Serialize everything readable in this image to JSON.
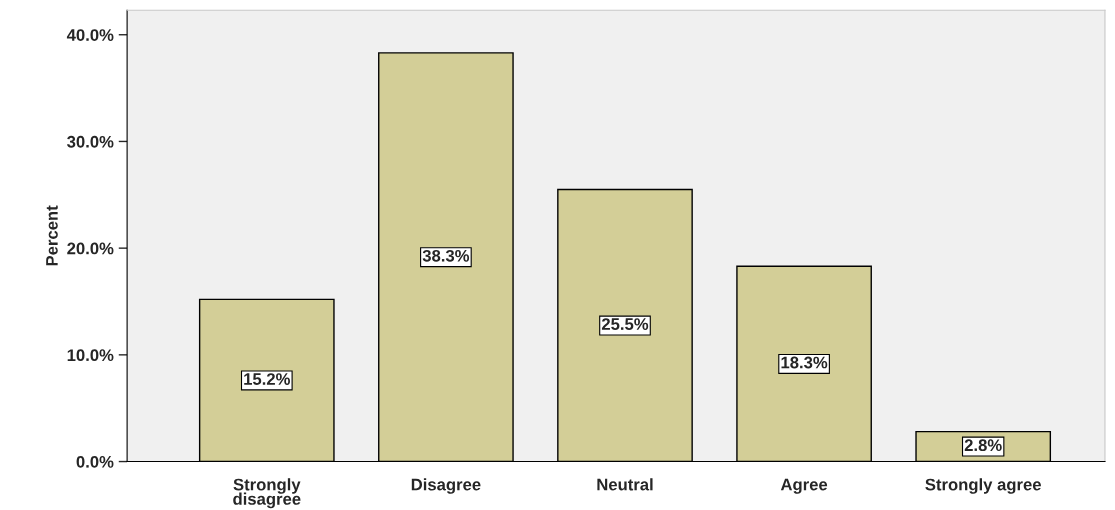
{
  "chart_data": {
    "type": "bar",
    "ylabel": "Percent",
    "categories": [
      "Strongly\ndisagree",
      "Disagree",
      "Neutral",
      "Agree",
      "Strongly agree"
    ],
    "values": [
      15.2,
      38.3,
      25.5,
      18.3,
      2.8
    ],
    "value_labels": [
      "15.2%",
      "38.3%",
      "25.5%",
      "18.3%",
      "2.8%"
    ],
    "color": "#d3ce97",
    "ylim": [
      0,
      42.3
    ],
    "yticks": [
      {
        "value": 0,
        "label": "0.0%"
      },
      {
        "value": 10,
        "label": "10.0%"
      },
      {
        "value": 20,
        "label": "20.0%"
      },
      {
        "value": 30,
        "label": "30.0%"
      },
      {
        "value": 40,
        "label": "40.0%"
      }
    ],
    "grid": false,
    "legend": false
  }
}
